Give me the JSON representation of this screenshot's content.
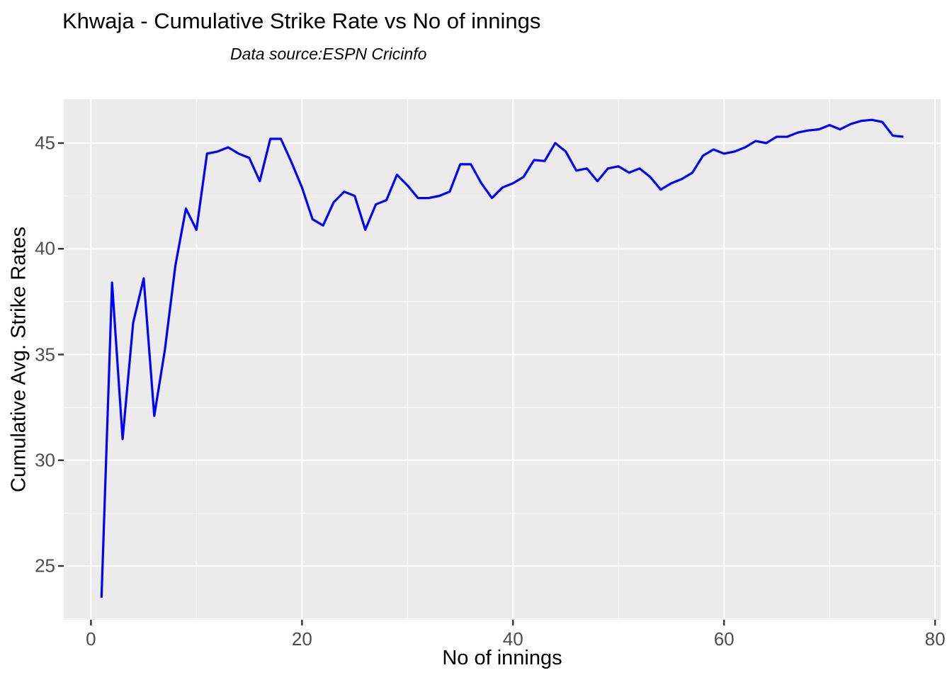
{
  "title": "Khwaja - Cumulative Strike Rate vs No of innings",
  "subtitle": "Data source:ESPN Cricinfo",
  "chart_data": {
    "type": "line",
    "title": "Khwaja - Cumulative Strike Rate vs No of innings",
    "subtitle": "Data source:ESPN Cricinfo",
    "xlabel": "No of innings",
    "ylabel": "Cumulative Avg. Strike Rates",
    "legend": "none",
    "grid": "major-and-minor-white-on-gray",
    "panel_bg": "#EBEBEB",
    "grid_color": "#FFFFFF",
    "line_color": "#0000FF",
    "tick_text_color": "#4D4D4D",
    "tick_mark_color": "#333333",
    "xlim": [
      -2.578,
      80.53
    ],
    "ylim": [
      22.454,
      47.077
    ],
    "x_ticks": [
      0,
      20,
      40,
      60,
      80
    ],
    "y_ticks": [
      25,
      30,
      35,
      40,
      45
    ],
    "x_minor": [
      10,
      30,
      50,
      70
    ],
    "y_minor": [
      22.5,
      27.5,
      32.5,
      37.5,
      42.5
    ],
    "series": [
      {
        "name": "Cumulative Avg. Strike Rate",
        "x": [
          1,
          2,
          3,
          4,
          5,
          6,
          7,
          8,
          9,
          10,
          11,
          12,
          13,
          14,
          15,
          16,
          17,
          18,
          19,
          20,
          21,
          22,
          23,
          24,
          25,
          26,
          27,
          28,
          29,
          30,
          31,
          32,
          33,
          34,
          35,
          36,
          37,
          38,
          39,
          40,
          41,
          42,
          43,
          44,
          45,
          46,
          47,
          48,
          49,
          50,
          51,
          52,
          53,
          54,
          55,
          56,
          57,
          58,
          59,
          60,
          61,
          62,
          63,
          64,
          65,
          66,
          67,
          68,
          69,
          70,
          71,
          72,
          73,
          74,
          75,
          76,
          77
        ],
        "y": [
          23.5,
          38.4,
          31.0,
          36.5,
          38.6,
          32.1,
          35.2,
          39.2,
          41.9,
          40.9,
          44.5,
          44.6,
          44.8,
          44.5,
          44.3,
          43.2,
          45.2,
          45.2,
          44.1,
          42.9,
          41.4,
          41.1,
          42.2,
          42.7,
          42.5,
          40.9,
          42.1,
          42.3,
          43.5,
          43.0,
          42.4,
          42.4,
          42.5,
          42.7,
          44.0,
          44.0,
          43.1,
          42.4,
          42.9,
          43.1,
          43.4,
          44.2,
          44.15,
          45.0,
          44.6,
          43.7,
          43.8,
          43.2,
          43.8,
          43.9,
          43.6,
          43.8,
          43.4,
          42.8,
          43.1,
          43.3,
          43.6,
          44.4,
          44.7,
          44.5,
          44.6,
          44.8,
          45.1,
          45.0,
          45.3,
          45.3,
          45.5,
          45.6,
          45.65,
          45.85,
          45.65,
          45.9,
          46.05,
          46.1,
          46.0,
          45.35,
          45.3
        ]
      }
    ]
  }
}
